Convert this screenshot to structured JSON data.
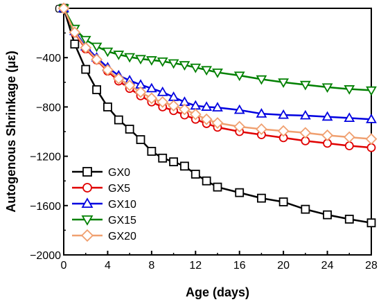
{
  "chart_data": {
    "type": "line",
    "xlabel": "Age (days)",
    "ylabel": "Autogenous Shrinkage (με)",
    "xlim": [
      0,
      28
    ],
    "ylim": [
      -2000,
      0
    ],
    "xticks": [
      0,
      4,
      8,
      12,
      16,
      20,
      24,
      28
    ],
    "xtick_labels": [
      "0",
      "4",
      "8",
      "12",
      "16",
      "20",
      "24",
      "28"
    ],
    "yticks": [
      0,
      -400,
      -800,
      -1200,
      -1600,
      -2000
    ],
    "ytick_labels": [
      "0",
      "−400",
      "−800",
      "−1200",
      "−1600",
      "−2000"
    ],
    "grid": false,
    "legend_position": "bottom-left",
    "series": [
      {
        "name": "GX0",
        "marker": "square",
        "color": "#000000",
        "x": [
          0,
          1,
          2,
          3,
          4,
          5,
          6,
          7,
          8,
          9,
          10,
          11,
          12,
          13,
          14,
          16,
          18,
          20,
          22,
          24,
          26,
          28
        ],
        "y": [
          0,
          -290,
          -495,
          -660,
          -800,
          -905,
          -980,
          -1065,
          -1160,
          -1215,
          -1245,
          -1280,
          -1345,
          -1400,
          -1450,
          -1495,
          -1540,
          -1570,
          -1630,
          -1675,
          -1710,
          -1740
        ]
      },
      {
        "name": "GX5",
        "marker": "circle",
        "color": "#e00000",
        "x": [
          0,
          1,
          2,
          3,
          4,
          5,
          6,
          7,
          8,
          9,
          10,
          11,
          12,
          13,
          14,
          16,
          18,
          20,
          22,
          24,
          26,
          28
        ],
        "y": [
          0,
          -200,
          -330,
          -420,
          -510,
          -590,
          -650,
          -710,
          -760,
          -800,
          -830,
          -865,
          -900,
          -935,
          -965,
          -1000,
          -1025,
          -1050,
          -1075,
          -1095,
          -1115,
          -1130
        ]
      },
      {
        "name": "GX10",
        "marker": "triangle-up",
        "color": "#0000e0",
        "x": [
          0,
          1,
          2,
          3,
          4,
          5,
          6,
          7,
          8,
          9,
          10,
          11,
          12,
          13,
          14,
          16,
          18,
          20,
          22,
          24,
          26,
          28
        ],
        "y": [
          0,
          -185,
          -310,
          -400,
          -480,
          -545,
          -585,
          -620,
          -650,
          -680,
          -720,
          -760,
          -790,
          -800,
          -805,
          -825,
          -855,
          -865,
          -870,
          -880,
          -890,
          -900
        ]
      },
      {
        "name": "GX15",
        "marker": "triangle-down",
        "color": "#008000",
        "x": [
          0,
          1,
          2,
          3,
          4,
          5,
          6,
          7,
          8,
          9,
          10,
          11,
          12,
          13,
          14,
          16,
          18,
          20,
          22,
          24,
          26,
          28
        ],
        "y": [
          0,
          -165,
          -255,
          -310,
          -350,
          -375,
          -395,
          -410,
          -420,
          -430,
          -445,
          -460,
          -480,
          -500,
          -520,
          -545,
          -575,
          -600,
          -620,
          -640,
          -655,
          -665
        ]
      },
      {
        "name": "GX20",
        "marker": "diamond",
        "color": "#f0a070",
        "x": [
          0,
          1,
          2,
          3,
          4,
          5,
          6,
          7,
          8,
          9,
          10,
          11,
          12,
          13,
          14,
          16,
          18,
          20,
          22,
          24,
          26,
          28
        ],
        "y": [
          0,
          -195,
          -320,
          -415,
          -500,
          -570,
          -625,
          -680,
          -730,
          -760,
          -790,
          -820,
          -860,
          -900,
          -930,
          -960,
          -980,
          -995,
          -1010,
          -1030,
          -1045,
          -1060
        ]
      }
    ]
  }
}
